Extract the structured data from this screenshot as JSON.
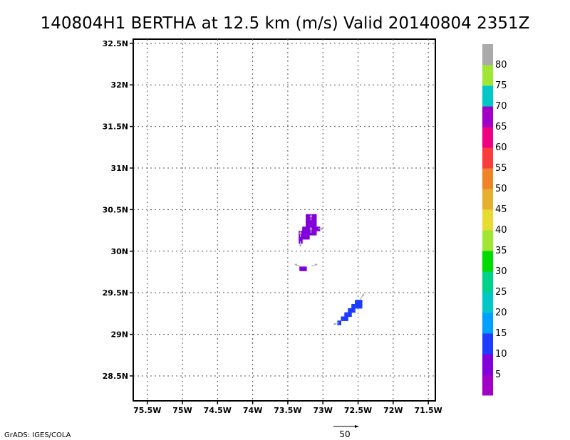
{
  "chart_data": {
    "type": "heatmap",
    "title": "140804H1 BERTHA at 12.5 km (m/s) Valid 20140804 2351Z",
    "xlabel": "",
    "ylabel": "",
    "xlim": [
      -75.7,
      -71.4
    ],
    "ylim": [
      28.2,
      32.55
    ],
    "x_ticks": [
      {
        "value": -75.5,
        "label": "75.5W"
      },
      {
        "value": -75.0,
        "label": "75W"
      },
      {
        "value": -74.5,
        "label": "74.5W"
      },
      {
        "value": -74.0,
        "label": "74W"
      },
      {
        "value": -73.5,
        "label": "73.5W"
      },
      {
        "value": -73.0,
        "label": "73W"
      },
      {
        "value": -72.5,
        "label": "72.5W"
      },
      {
        "value": -72.0,
        "label": "72W"
      },
      {
        "value": -71.5,
        "label": "71.5W"
      }
    ],
    "y_ticks": [
      {
        "value": 28.5,
        "label": "28.5N"
      },
      {
        "value": 29.0,
        "label": "29N"
      },
      {
        "value": 29.5,
        "label": "29.5N"
      },
      {
        "value": 30.0,
        "label": "30N"
      },
      {
        "value": 30.5,
        "label": "30.5N"
      },
      {
        "value": 31.0,
        "label": "31N"
      },
      {
        "value": 31.5,
        "label": "31.5N"
      },
      {
        "value": 32.0,
        "label": "32N"
      },
      {
        "value": 32.5,
        "label": "32.5N"
      }
    ],
    "grid": true,
    "cell_size_deg": 0.05,
    "cells": [
      {
        "lon": -73.22,
        "lat": 30.42,
        "v": 7
      },
      {
        "lon": -73.17,
        "lat": 30.42,
        "v": 7
      },
      {
        "lon": -73.12,
        "lat": 30.42,
        "v": 7
      },
      {
        "lon": -73.22,
        "lat": 30.37,
        "v": 7
      },
      {
        "lon": -73.17,
        "lat": 30.37,
        "v": 7
      },
      {
        "lon": -73.12,
        "lat": 30.37,
        "v": 7
      },
      {
        "lon": -73.22,
        "lat": 30.32,
        "v": 7
      },
      {
        "lon": -73.17,
        "lat": 30.32,
        "v": 7
      },
      {
        "lon": -73.12,
        "lat": 30.32,
        "v": 7
      },
      {
        "lon": -73.27,
        "lat": 30.27,
        "v": 7
      },
      {
        "lon": -73.22,
        "lat": 30.27,
        "v": 7
      },
      {
        "lon": -73.17,
        "lat": 30.27,
        "v": 7
      },
      {
        "lon": -73.12,
        "lat": 30.27,
        "v": 7
      },
      {
        "lon": -73.07,
        "lat": 30.27,
        "v": 7
      },
      {
        "lon": -73.32,
        "lat": 30.22,
        "v": 7
      },
      {
        "lon": -73.27,
        "lat": 30.22,
        "v": 7
      },
      {
        "lon": -73.22,
        "lat": 30.22,
        "v": 7
      },
      {
        "lon": -73.17,
        "lat": 30.22,
        "v": 7
      },
      {
        "lon": -73.12,
        "lat": 30.22,
        "v": 7
      },
      {
        "lon": -73.32,
        "lat": 30.17,
        "v": 7
      },
      {
        "lon": -73.27,
        "lat": 30.17,
        "v": 7
      },
      {
        "lon": -73.22,
        "lat": 30.17,
        "v": 7
      },
      {
        "lon": -73.32,
        "lat": 30.12,
        "v": 7
      },
      {
        "lon": -73.31,
        "lat": 29.79,
        "v": 7
      },
      {
        "lon": -73.26,
        "lat": 29.79,
        "v": 7
      },
      {
        "lon": -72.52,
        "lat": 29.39,
        "v": 12
      },
      {
        "lon": -72.47,
        "lat": 29.39,
        "v": 12
      },
      {
        "lon": -72.57,
        "lat": 29.34,
        "v": 12
      },
      {
        "lon": -72.52,
        "lat": 29.34,
        "v": 12
      },
      {
        "lon": -72.47,
        "lat": 29.34,
        "v": 12
      },
      {
        "lon": -72.62,
        "lat": 29.29,
        "v": 12
      },
      {
        "lon": -72.57,
        "lat": 29.29,
        "v": 12
      },
      {
        "lon": -72.67,
        "lat": 29.24,
        "v": 12
      },
      {
        "lon": -72.62,
        "lat": 29.24,
        "v": 12
      },
      {
        "lon": -72.72,
        "lat": 29.19,
        "v": 12
      },
      {
        "lon": -72.67,
        "lat": 29.19,
        "v": 12
      },
      {
        "lon": -72.77,
        "lat": 29.14,
        "v": 12
      }
    ],
    "vectors": [
      {
        "lon": -73.17,
        "lat": 30.37,
        "u": 0,
        "v": 3
      },
      {
        "lon": -73.17,
        "lat": 30.22,
        "u": 0,
        "v": 3
      },
      {
        "lon": -73.32,
        "lat": 30.17,
        "u": 0,
        "v": 3
      },
      {
        "lon": -73.32,
        "lat": 30.12,
        "u": 0,
        "v": -3
      },
      {
        "lon": -73.07,
        "lat": 30.27,
        "u": 3,
        "v": 0
      },
      {
        "lon": -73.32,
        "lat": 29.82,
        "u": -3,
        "v": 1
      },
      {
        "lon": -73.16,
        "lat": 29.82,
        "u": 3,
        "v": 1
      },
      {
        "lon": -72.47,
        "lat": 29.42,
        "u": 2,
        "v": 3
      },
      {
        "lon": -72.77,
        "lat": 29.14,
        "u": -3,
        "v": -1
      }
    ],
    "colorbar": {
      "bins": [
        {
          "min": 0,
          "max": 5,
          "color": "#a000c8"
        },
        {
          "min": 5,
          "max": 10,
          "color": "#8200dc"
        },
        {
          "min": 10,
          "max": 15,
          "color": "#1e3cff"
        },
        {
          "min": 15,
          "max": 20,
          "color": "#00a0ff"
        },
        {
          "min": 20,
          "max": 25,
          "color": "#00c8c8"
        },
        {
          "min": 25,
          "max": 30,
          "color": "#00d28c"
        },
        {
          "min": 30,
          "max": 35,
          "color": "#00dc00"
        },
        {
          "min": 35,
          "max": 40,
          "color": "#a0e632"
        },
        {
          "min": 40,
          "max": 45,
          "color": "#e6dc32"
        },
        {
          "min": 45,
          "max": 50,
          "color": "#e6af2d"
        },
        {
          "min": 50,
          "max": 55,
          "color": "#f08228"
        },
        {
          "min": 55,
          "max": 60,
          "color": "#fa3c3c"
        },
        {
          "min": 60,
          "max": 65,
          "color": "#f00082"
        },
        {
          "min": 65,
          "max": 70,
          "color": "#a000c8"
        },
        {
          "min": 70,
          "max": 75,
          "color": "#00c8c8"
        },
        {
          "min": 75,
          "max": 80,
          "color": "#a0e632"
        },
        {
          "min": 80,
          "max": 85,
          "color": "#aaaaaa"
        }
      ],
      "labels": [
        "5",
        "10",
        "15",
        "20",
        "25",
        "30",
        "35",
        "40",
        "45",
        "50",
        "55",
        "60",
        "65",
        "70",
        "75",
        "80"
      ]
    },
    "reference_vector": {
      "label": "50"
    },
    "credit": "GrADS: IGES/COLA"
  }
}
